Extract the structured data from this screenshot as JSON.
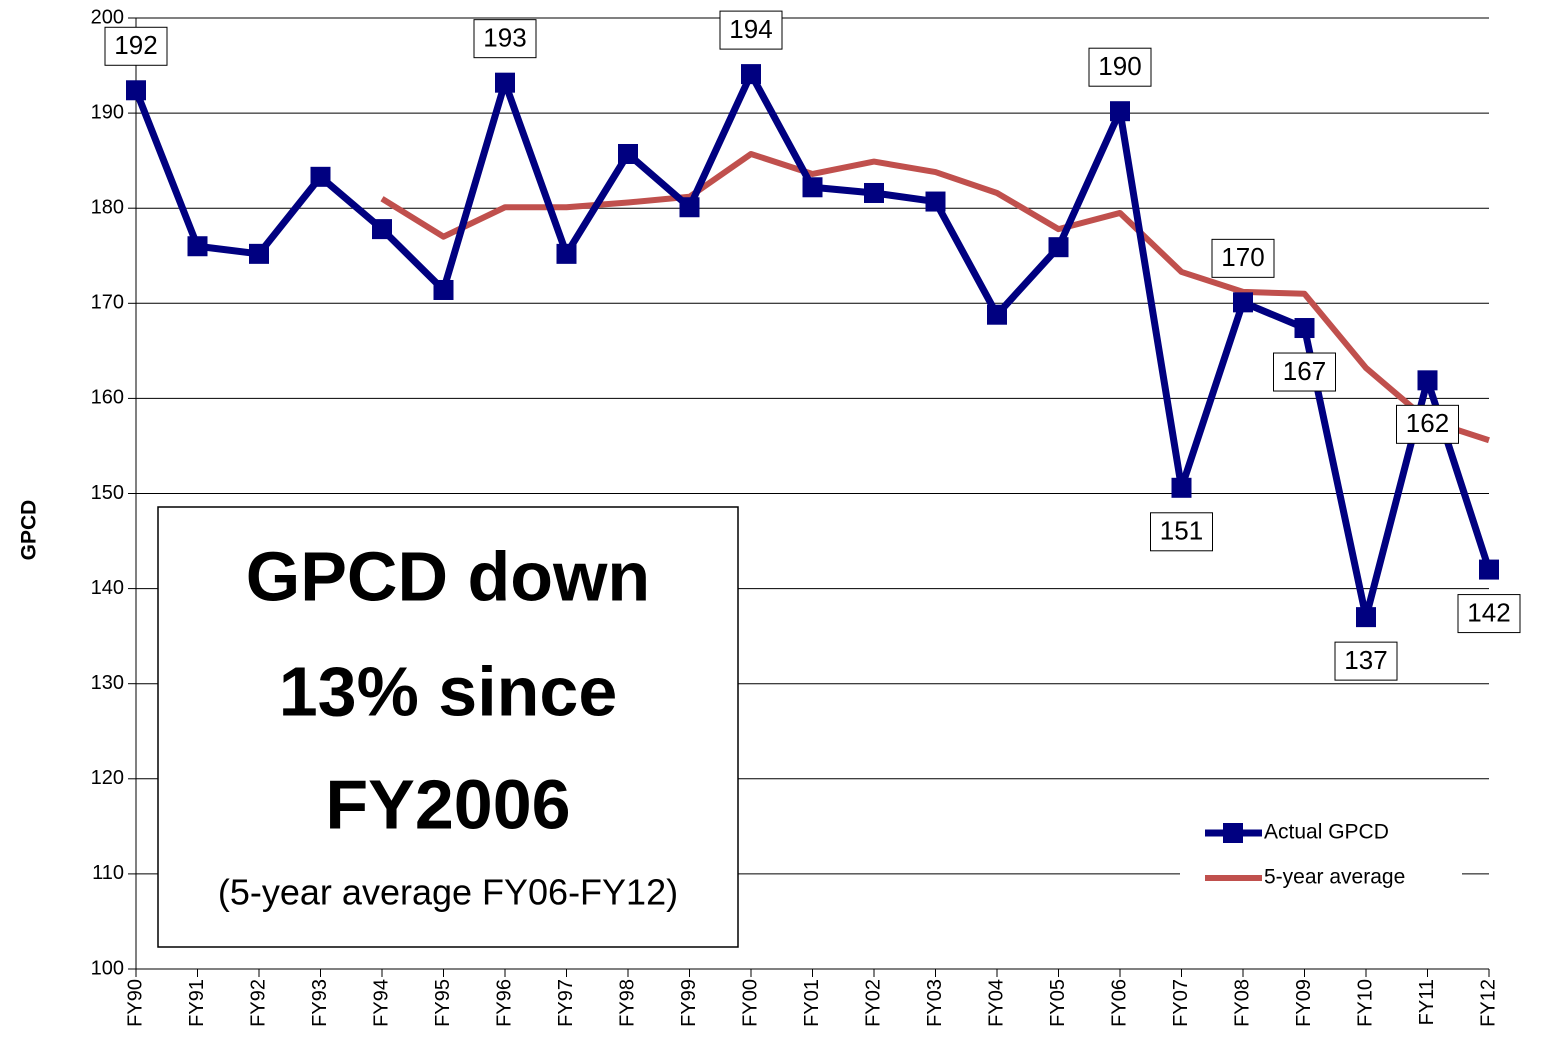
{
  "chart_data": {
    "type": "line",
    "y_label": "GPCD",
    "categories": [
      "FY90",
      "FY91",
      "FY92",
      "FY93",
      "FY94",
      "FY95",
      "FY96",
      "FY97",
      "FY98",
      "FY99",
      "FY00",
      "FY01",
      "FY02",
      "FY03",
      "FY04",
      "FY05",
      "FY06",
      "FY07",
      "FY08",
      "FY09",
      "FY10",
      "FY11",
      "FY12"
    ],
    "series": [
      {
        "name": "Actual GPCD",
        "color": "#000080",
        "values": [
          192.4,
          176.0,
          175.2,
          183.3,
          177.8,
          171.4,
          193.2,
          175.2,
          185.7,
          180.1,
          194.1,
          182.2,
          181.6,
          180.7,
          168.8,
          175.9,
          190.2,
          150.6,
          170.1,
          167.4,
          137.0,
          161.9,
          142.0
        ],
        "value_labels": [
          "192",
          null,
          null,
          null,
          null,
          null,
          "193",
          null,
          null,
          null,
          "194",
          null,
          null,
          null,
          null,
          null,
          "190",
          "151",
          "170",
          "167",
          "137",
          "162",
          "142"
        ]
      },
      {
        "name": "5-year average",
        "color": "#c0504d",
        "values": [
          null,
          null,
          null,
          null,
          181.0,
          177.0,
          180.1,
          180.1,
          180.6,
          181.2,
          185.7,
          183.6,
          184.9,
          183.8,
          181.6,
          177.8,
          179.5,
          173.3,
          171.2,
          171.0,
          163.2,
          157.7,
          155.6
        ]
      }
    ],
    "ylim": [
      100,
      200
    ],
    "yticks": [
      100,
      110,
      120,
      130,
      140,
      150,
      160,
      170,
      180,
      190,
      200
    ],
    "grid": true,
    "legend": "lower right",
    "annotation": [
      "GPCD down",
      "13% since",
      "FY2006",
      "(5-year average FY06-FY12)"
    ]
  }
}
